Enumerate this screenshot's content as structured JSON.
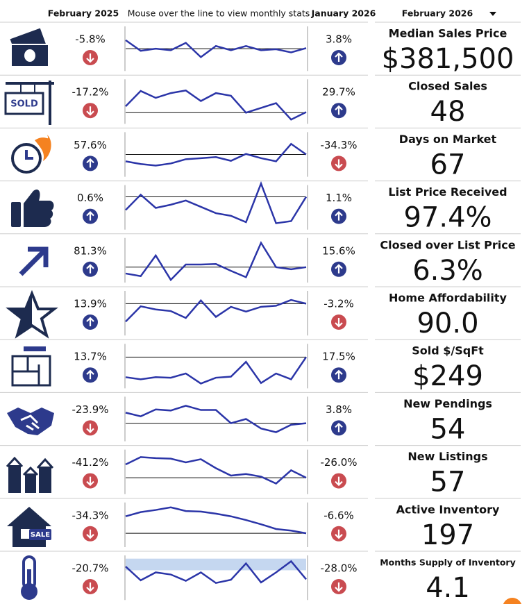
{
  "header": {
    "col_prev_year": "February 2025",
    "instructions": "Mouse over the line to view monthly stats",
    "col_prev_month": "January 2026",
    "period": "February 2026"
  },
  "metrics": [
    {
      "label": "Median Sales Price",
      "value": "$381,500",
      "yoy": "-5.8%",
      "yoy_direction": "down",
      "mom": "3.8%",
      "mom_direction": "up",
      "trend": [
        66,
        46,
        50,
        47,
        61,
        34,
        55,
        47,
        55,
        47,
        49,
        43,
        51
      ],
      "baseline": 50
    },
    {
      "label": "Closed Sales",
      "value": "48",
      "icon_text": "SOLD",
      "yoy": "-17.2%",
      "yoy_direction": "down",
      "mom": "29.7%",
      "mom_direction": "up",
      "trend": [
        41,
        70,
        57,
        66,
        71,
        51,
        66,
        61,
        29,
        38,
        47,
        16,
        30
      ],
      "baseline": 29
    },
    {
      "label": "Days on Market",
      "value": "67",
      "yoy": "57.6%",
      "yoy_direction": "up",
      "mom": "-34.3%",
      "mom_direction": "down",
      "trend": [
        37,
        32,
        29,
        33,
        41,
        43,
        45,
        38,
        51,
        43,
        37,
        70,
        50
      ],
      "baseline": 50
    },
    {
      "label": "List Price Received",
      "value": "97.4%",
      "yoy": "0.6%",
      "yoy_direction": "up",
      "mom": "1.1%",
      "mom_direction": "up",
      "trend": [
        45,
        74,
        49,
        55,
        63,
        51,
        39,
        34,
        22,
        95,
        20,
        24,
        70
      ],
      "baseline": 70
    },
    {
      "label": "Closed over List Price",
      "value": "6.3%",
      "yoy": "81.3%",
      "yoy_direction": "up",
      "mom": "15.6%",
      "mom_direction": "up",
      "trend": [
        25,
        20,
        59,
        13,
        42,
        42,
        43,
        30,
        18,
        83,
        37,
        33,
        37
      ],
      "baseline": 37
    },
    {
      "label": "Home Affordability",
      "value": "90.0",
      "yoy": "13.9%",
      "yoy_direction": "up",
      "mom": "-3.2%",
      "mom_direction": "down",
      "trend": [
        34,
        63,
        57,
        54,
        41,
        74,
        43,
        62,
        53,
        62,
        64,
        75,
        68
      ],
      "baseline": 68
    },
    {
      "label": "Sold $/SqFt",
      "value": "$249",
      "yoy": "13.7%",
      "yoy_direction": "up",
      "mom": "17.5%",
      "mom_direction": "up",
      "trend": [
        29,
        25,
        29,
        28,
        36,
        17,
        28,
        30,
        58,
        18,
        36,
        25,
        67
      ],
      "baseline": 67
    },
    {
      "label": "New Pendings",
      "value": "54",
      "yoy": "-23.9%",
      "yoy_direction": "down",
      "mom": "3.8%",
      "mom_direction": "up",
      "trend": [
        62,
        55,
        68,
        66,
        75,
        67,
        67,
        42,
        50,
        32,
        25,
        39,
        42
      ],
      "baseline": 42
    },
    {
      "label": "New Listings",
      "value": "57",
      "yoy": "-41.2%",
      "yoy_direction": "down",
      "mom": "-26.0%",
      "mom_direction": "down",
      "trend": [
        64,
        78,
        76,
        75,
        68,
        74,
        57,
        43,
        46,
        41,
        28,
        53,
        39
      ],
      "baseline": 39
    },
    {
      "label": "Active Inventory",
      "value": "197",
      "icon_text": "SALE",
      "yoy": "-34.3%",
      "yoy_direction": "down",
      "mom": "-6.6%",
      "mom_direction": "down",
      "trend": [
        66,
        74,
        78,
        83,
        76,
        75,
        71,
        66,
        59,
        51,
        42,
        39,
        34
      ],
      "baseline": 34
    },
    {
      "label": "Months Supply of Inventory",
      "value": "4.1",
      "yoy": "-20.7%",
      "yoy_direction": "down",
      "mom": "-28.0%",
      "mom_direction": "down",
      "trend": [
        71,
        45,
        60,
        56,
        44,
        60,
        40,
        46,
        77,
        41,
        60,
        81,
        47
      ],
      "band": [
        64,
        86
      ]
    }
  ]
}
